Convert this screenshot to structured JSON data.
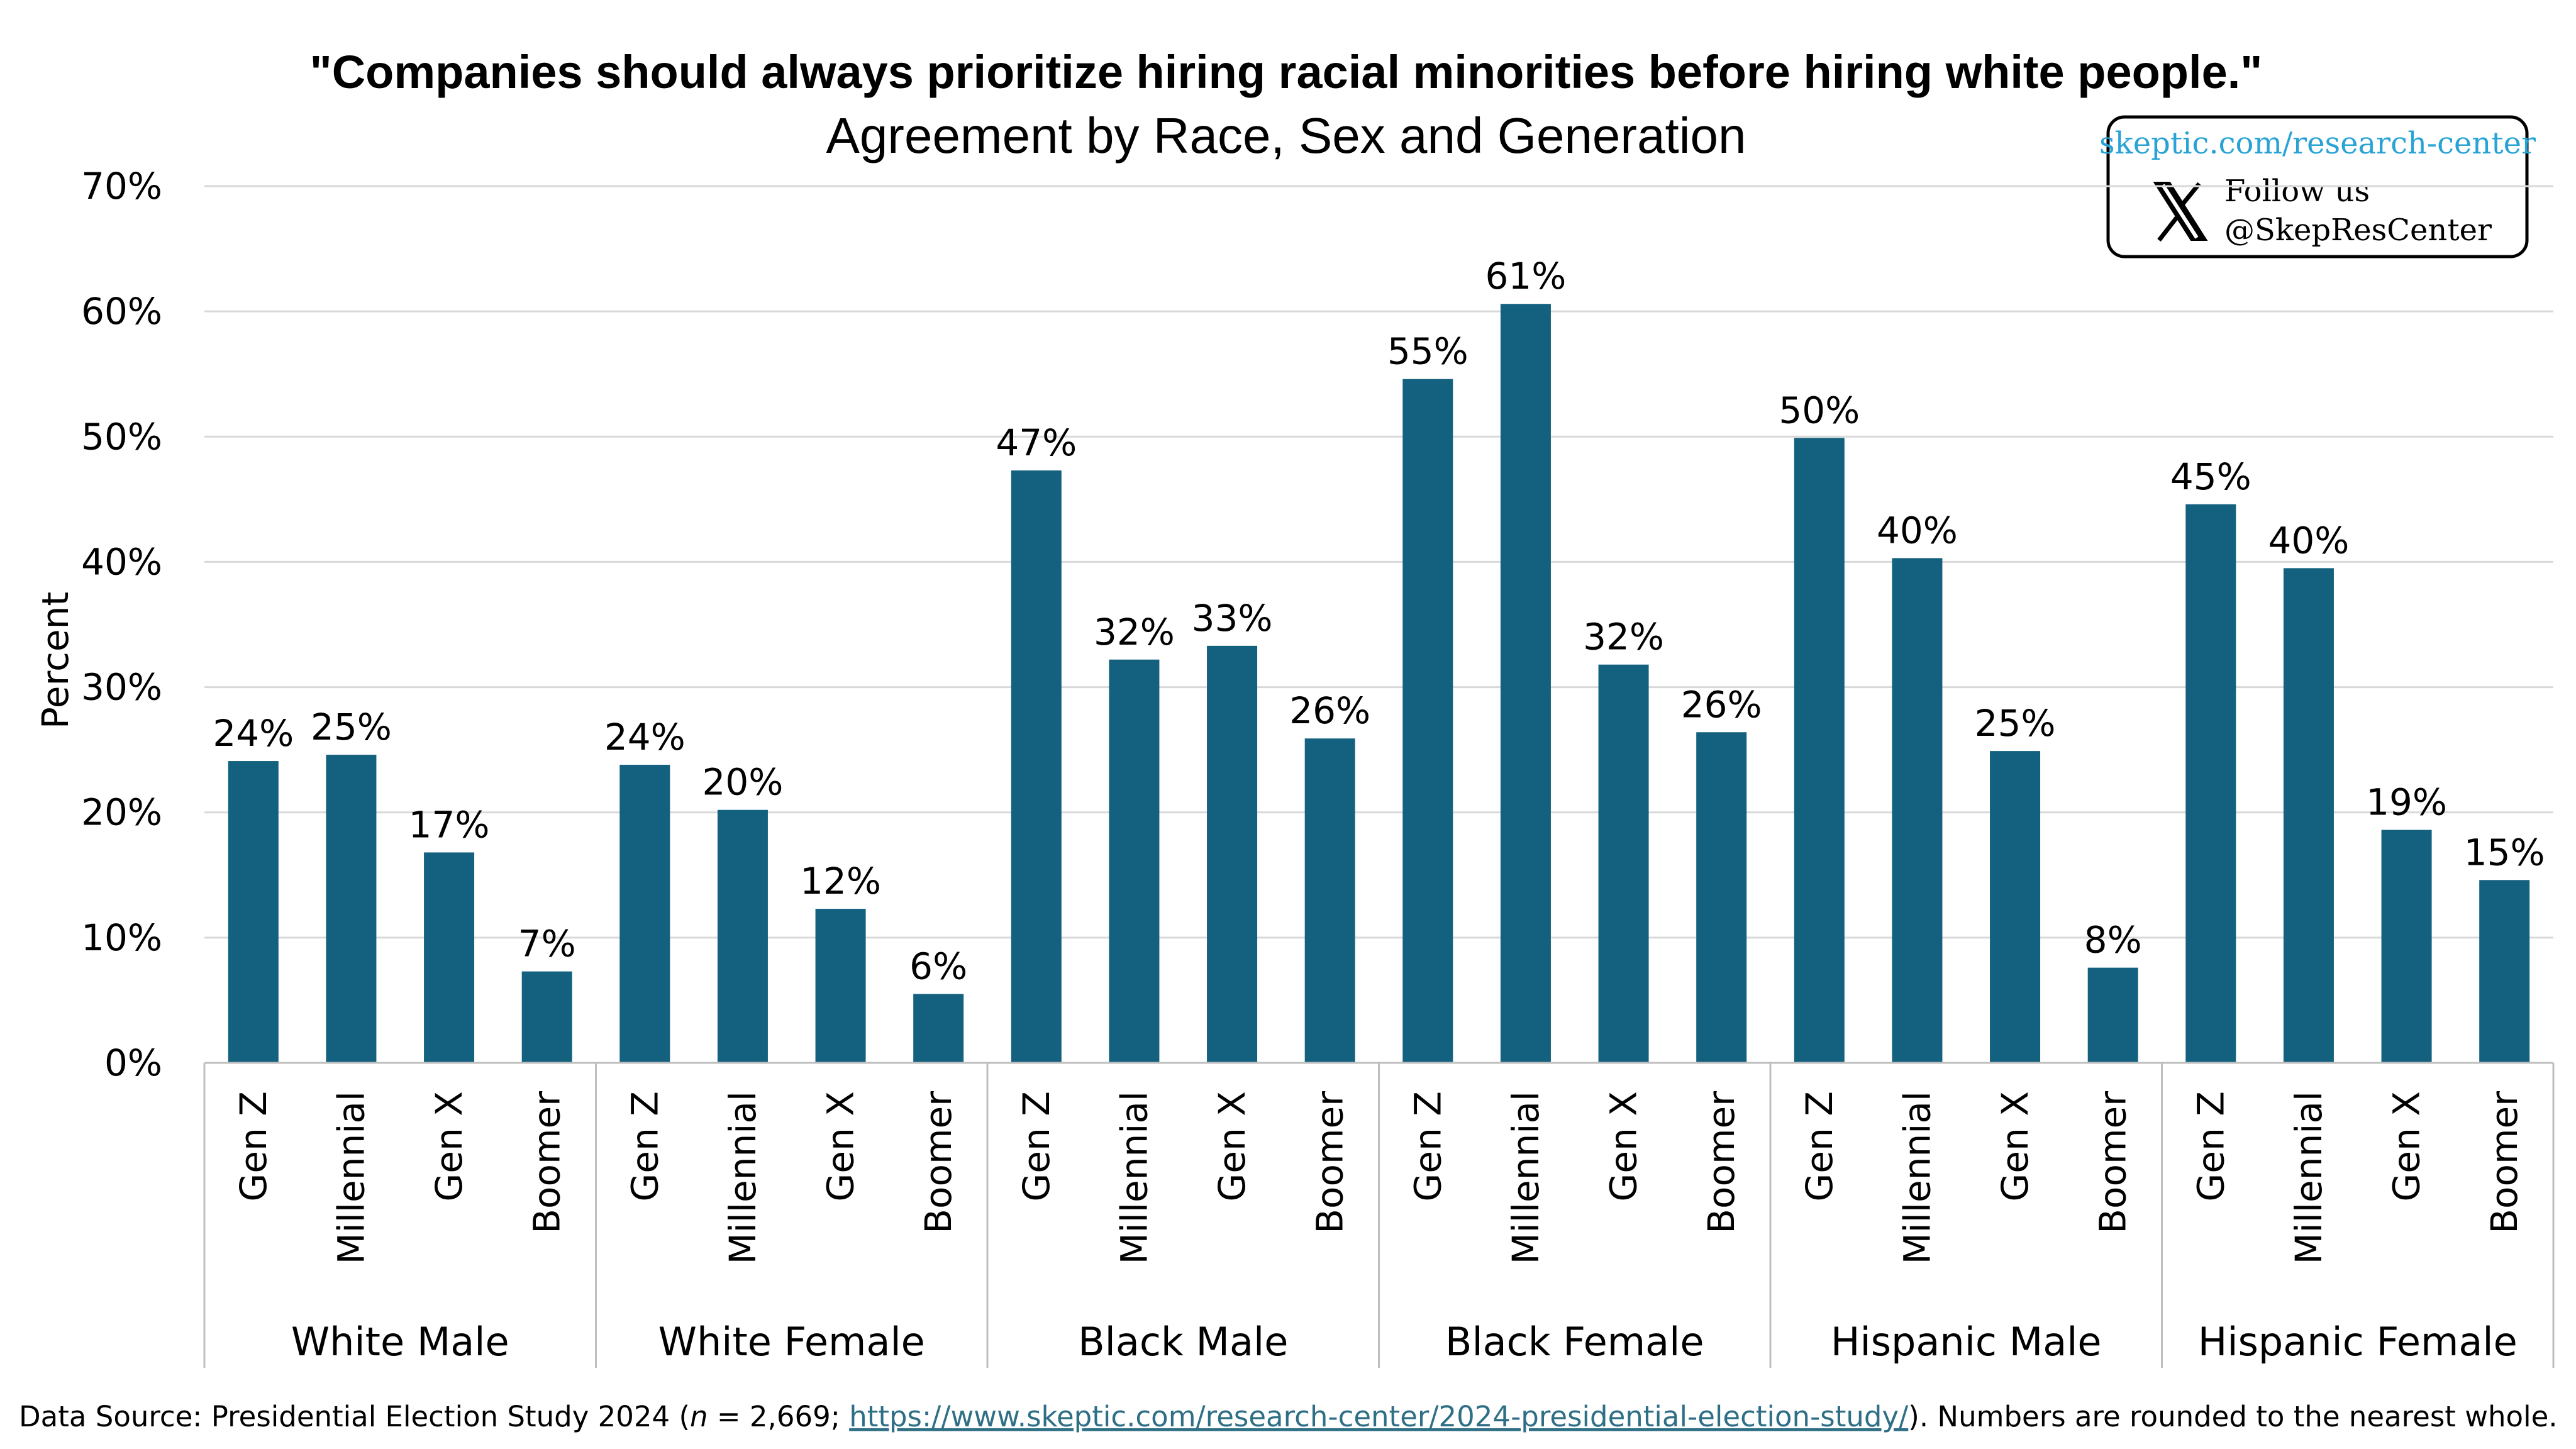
{
  "chart_data": {
    "type": "bar",
    "title": "\"Companies should always prioritize hiring racial minorities before hiring white people.\"",
    "subtitle": "Agreement by Race, Sex and Generation",
    "ylabel": "Percent",
    "ylim": [
      0,
      70
    ],
    "yticks": [
      "0%",
      "10%",
      "20%",
      "30%",
      "40%",
      "50%",
      "60%",
      "70%"
    ],
    "grid": true,
    "bar_color": "#14617f",
    "grid_color": "#d9d9d9",
    "groups": [
      {
        "name": "White Male",
        "categories": [
          "Gen Z",
          "Millennial",
          "Gen X",
          "Boomer"
        ],
        "values": [
          24.1,
          24.6,
          16.8,
          7.3
        ],
        "labels": [
          "24%",
          "25%",
          "17%",
          "7%"
        ]
      },
      {
        "name": "White Female",
        "categories": [
          "Gen Z",
          "Millennial",
          "Gen X",
          "Boomer"
        ],
        "values": [
          23.8,
          20.2,
          12.3,
          5.5
        ],
        "labels": [
          "24%",
          "20%",
          "12%",
          "6%"
        ]
      },
      {
        "name": "Black Male",
        "categories": [
          "Gen Z",
          "Millennial",
          "Gen X",
          "Boomer"
        ],
        "values": [
          47.3,
          32.2,
          33.3,
          25.9
        ],
        "labels": [
          "47%",
          "32%",
          "33%",
          "26%"
        ]
      },
      {
        "name": "Black Female",
        "categories": [
          "Gen Z",
          "Millennial",
          "Gen X",
          "Boomer"
        ],
        "values": [
          54.6,
          60.6,
          31.8,
          26.4
        ],
        "labels": [
          "55%",
          "61%",
          "32%",
          "26%"
        ]
      },
      {
        "name": "Hispanic Male",
        "categories": [
          "Gen Z",
          "Millennial",
          "Gen X",
          "Boomer"
        ],
        "values": [
          49.9,
          40.3,
          24.9,
          7.6
        ],
        "labels": [
          "50%",
          "40%",
          "25%",
          "8%"
        ]
      },
      {
        "name": "Hispanic Female",
        "categories": [
          "Gen Z",
          "Millennial",
          "Gen X",
          "Boomer"
        ],
        "values": [
          44.6,
          39.5,
          18.6,
          14.6
        ],
        "labels": [
          "45%",
          "40%",
          "19%",
          "15%"
        ]
      }
    ]
  },
  "badge": {
    "url": "skeptic.com/research-center",
    "follow": "Follow us",
    "handle": "@SkepResCenter",
    "icon": "x-logo-icon",
    "url_color": "#29a3d6"
  },
  "source": {
    "prefix": "Data Source: Presidential Election Study 2024 (",
    "n_italic": "n",
    "n_value": " = 2,669; ",
    "link": "https://www.skeptic.com/research-center/2024-presidential-election-study/",
    "suffix": "). Numbers are rounded to the nearest whole."
  }
}
